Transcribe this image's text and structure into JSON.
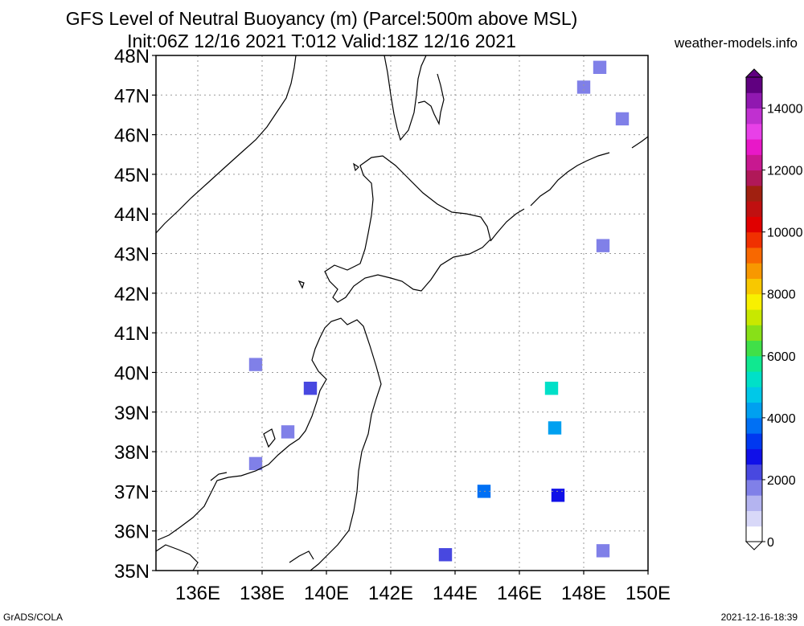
{
  "title_line1": "GFS Level of Neutral Buoyancy (m) (Parcel:500m above MSL)",
  "title_line2": "Init:06Z 12/16 2021 T:012 Valid:18Z 12/16 2021",
  "credit": "weather-models.info",
  "footer_left": "GrADS/COLA",
  "footer_right": "2021-12-16-18:39",
  "map": {
    "lat_labels": [
      "48N",
      "47N",
      "46N",
      "45N",
      "44N",
      "43N",
      "42N",
      "41N",
      "40N",
      "39N",
      "38N",
      "37N",
      "36N",
      "35N"
    ],
    "lat_values": [
      48,
      47,
      46,
      45,
      44,
      43,
      42,
      41,
      40,
      39,
      38,
      37,
      36,
      35
    ],
    "lon_labels": [
      "136E",
      "138E",
      "140E",
      "142E",
      "144E",
      "146E",
      "148E",
      "150E"
    ],
    "lon_values": [
      136,
      138,
      140,
      142,
      144,
      146,
      148,
      150
    ],
    "lon_range": [
      134.7,
      150
    ],
    "lat_range": [
      35,
      48
    ]
  },
  "colorbar": {
    "labels": [
      "0",
      "2000",
      "4000",
      "6000",
      "8000",
      "10000",
      "12000",
      "14000"
    ],
    "min": 0,
    "max": 15000,
    "colors": [
      "#ffffff",
      "#d8d8f8",
      "#b4b4f0",
      "#8080e8",
      "#4848e0",
      "#1010e8",
      "#0038f0",
      "#0070f4",
      "#00a0f0",
      "#00c8e8",
      "#00e0c8",
      "#10e890",
      "#40e048",
      "#88e018",
      "#c8e800",
      "#f8f000",
      "#f8c800",
      "#f89800",
      "#f86800",
      "#f03000",
      "#e00000",
      "#c01010",
      "#a02010",
      "#b01858",
      "#c81890",
      "#e818c8",
      "#e840e8",
      "#c030d0",
      "#9018b0",
      "#600080"
    ]
  },
  "grid_cells": [
    {
      "lon": 148.5,
      "lat": 47.7,
      "v": 1500
    },
    {
      "lon": 148,
      "lat": 47.2,
      "v": 1500
    },
    {
      "lon": 149.2,
      "lat": 46.4,
      "v": 1500
    },
    {
      "lon": 148.6,
      "lat": 43.2,
      "v": 1500
    },
    {
      "lon": 139.5,
      "lat": 39.6,
      "v": 2200
    },
    {
      "lon": 137.8,
      "lat": 40.2,
      "v": 1600
    },
    {
      "lon": 138.8,
      "lat": 38.5,
      "v": 1800
    },
    {
      "lon": 137.8,
      "lat": 37.7,
      "v": 1600
    },
    {
      "lon": 144.9,
      "lat": 37.0,
      "v": 3500
    },
    {
      "lon": 147.0,
      "lat": 39.6,
      "v": 5200
    },
    {
      "lon": 147.1,
      "lat": 38.6,
      "v": 4200
    },
    {
      "lon": 143.7,
      "lat": 35.4,
      "v": 2300
    },
    {
      "lon": 148.6,
      "lat": 35.5,
      "v": 1800
    },
    {
      "lon": 147.2,
      "lat": 36.9,
      "v": 2600
    }
  ]
}
